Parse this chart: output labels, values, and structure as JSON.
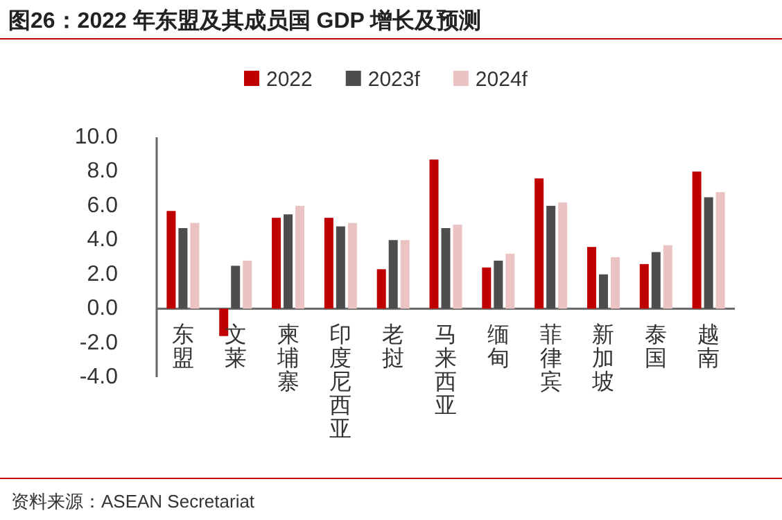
{
  "chart_data": {
    "type": "bar",
    "title": "图26：2022 年东盟及其成员国 GDP 增长及预测",
    "categories": [
      "东盟",
      "文莱",
      "柬埔寨",
      "印度尼西亚",
      "老挝",
      "马来西亚",
      "缅甸",
      "菲律宾",
      "新加坡",
      "泰国",
      "越南"
    ],
    "series": [
      {
        "name": "2022",
        "color": "#c00000",
        "values": [
          5.7,
          -1.6,
          5.3,
          5.3,
          2.3,
          8.7,
          2.4,
          7.6,
          3.6,
          2.6,
          8.0
        ]
      },
      {
        "name": "2023f",
        "color": "#4d4d4f",
        "values": [
          4.7,
          2.5,
          5.5,
          4.8,
          4.0,
          4.7,
          2.8,
          6.0,
          2.0,
          3.3,
          6.5
        ]
      },
      {
        "name": "2024f",
        "color": "#ecc3c3",
        "values": [
          5.0,
          2.8,
          6.0,
          5.0,
          4.0,
          4.9,
          3.2,
          6.2,
          3.0,
          3.7,
          6.8
        ]
      }
    ],
    "ylim": [
      -4,
      10
    ],
    "yticks": [
      {
        "value": -4,
        "label": "-4.0"
      },
      {
        "value": -2,
        "label": "-2.0"
      },
      {
        "value": 0,
        "label": "0.0"
      },
      {
        "value": 2,
        "label": "2.0"
      },
      {
        "value": 4,
        "label": "4.0"
      },
      {
        "value": 6,
        "label": "6.0"
      },
      {
        "value": 8,
        "label": "8.0"
      },
      {
        "value": 10,
        "label": "10.0"
      }
    ],
    "legend": "top",
    "grid": false,
    "annotations": [
      "资料来源：ASEAN Secretariat"
    ]
  }
}
